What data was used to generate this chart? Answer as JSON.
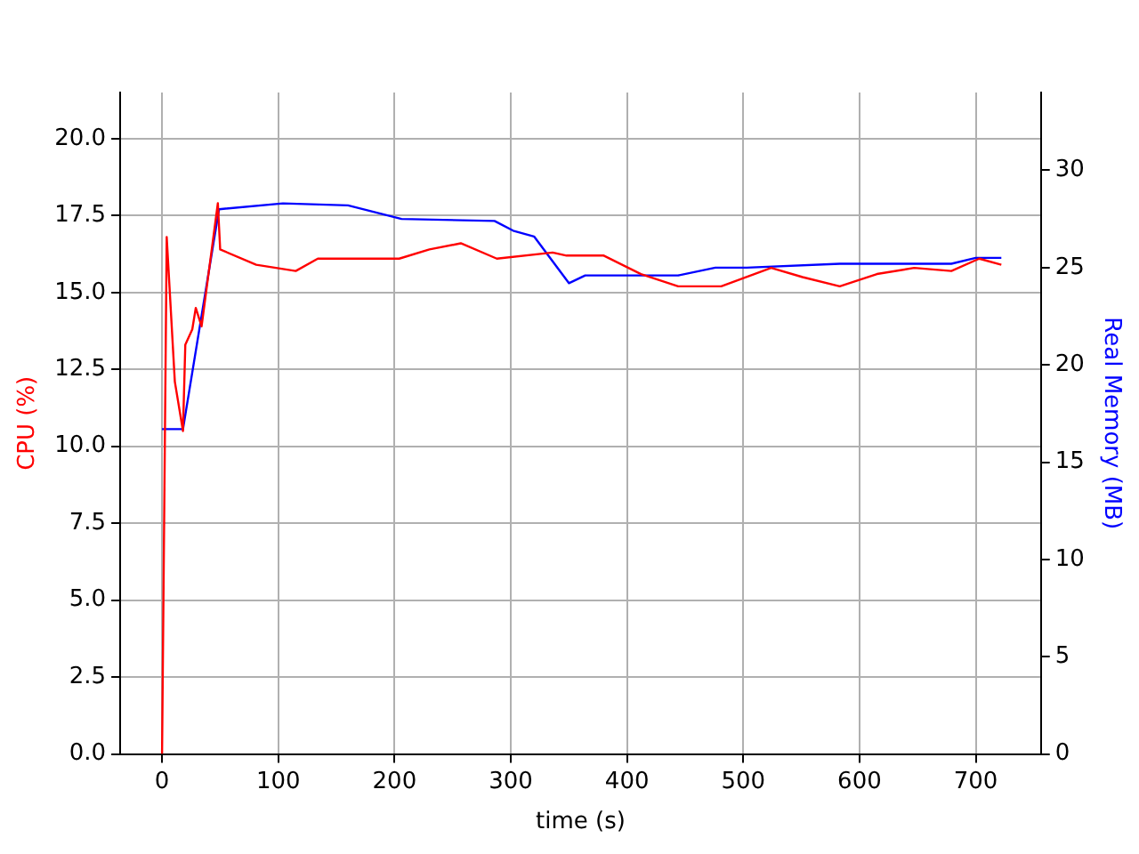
{
  "chart_data": {
    "type": "line",
    "xlabel": "time (s)",
    "ylabel": "CPU (%)",
    "y2label": "Real Memory (MB)",
    "xlim": [
      -36,
      756
    ],
    "xticks": [
      0,
      100,
      200,
      300,
      400,
      500,
      600,
      700
    ],
    "ylim": [
      0,
      21.5
    ],
    "yticks": [
      {
        "value": 0,
        "label": "0.0"
      },
      {
        "value": 2.5,
        "label": "2.5"
      },
      {
        "value": 5,
        "label": "5.0"
      },
      {
        "value": 7.5,
        "label": "7.5"
      },
      {
        "value": 10,
        "label": "10.0"
      },
      {
        "value": 12.5,
        "label": "12.5"
      },
      {
        "value": 15,
        "label": "15.0"
      },
      {
        "value": 17.5,
        "label": "17.5"
      },
      {
        "value": 20,
        "label": "20.0"
      }
    ],
    "y2lim": [
      0,
      34
    ],
    "y2ticks": [
      0,
      5,
      10,
      15,
      20,
      25,
      30
    ],
    "grid": true,
    "legend": false,
    "marker": "none",
    "line_style": "solid",
    "series": [
      {
        "color": "#ff0000",
        "axis": "y",
        "x": [
          0,
          4,
          11,
          18,
          20,
          26,
          29,
          34,
          48,
          50,
          81,
          115,
          134,
          176,
          204,
          230,
          257,
          288,
          336,
          348,
          380,
          412,
          444,
          481,
          524,
          551,
          583,
          615,
          647,
          679,
          703,
          722
        ],
        "values": [
          0,
          16.8,
          12.1,
          10.5,
          13.3,
          13.8,
          14.5,
          13.9,
          17.9,
          16.4,
          15.9,
          15.7,
          16.1,
          16.1,
          16.1,
          16.4,
          16.6,
          16.1,
          16.3,
          16.2,
          16.2,
          15.6,
          15.2,
          15.2,
          15.8,
          15.5,
          15.2,
          15.6,
          15.8,
          15.7,
          16.1,
          15.9
        ]
      },
      {
        "color": "#0000ff",
        "axis": "y2",
        "x": [
          0,
          18,
          49,
          104,
          160,
          206,
          286,
          302,
          320,
          350,
          364,
          444,
          476,
          503,
          583,
          679,
          700,
          722
        ],
        "values": [
          16.7,
          16.7,
          28.0,
          28.3,
          28.2,
          27.5,
          27.4,
          26.9,
          26.6,
          24.2,
          24.6,
          24.6,
          25.0,
          25.0,
          25.2,
          25.2,
          25.5,
          25.5
        ]
      }
    ]
  }
}
